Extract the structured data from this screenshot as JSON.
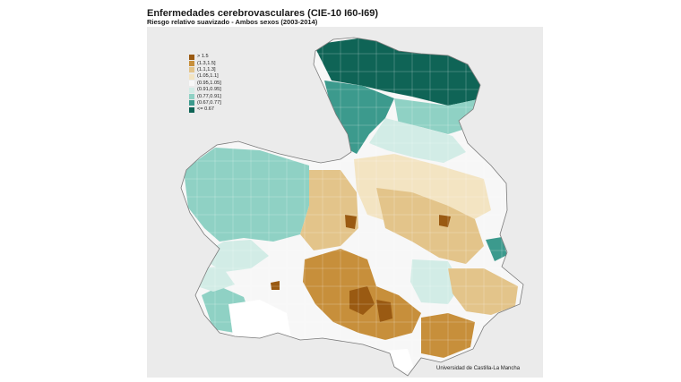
{
  "title": "Enfermedades cerebrovasculares (CIE-10 I60-I69)",
  "subtitle": "Riesgo relativo suavizado - Ambos sexos (2003-2014)",
  "legend": {
    "items": [
      {
        "label": "> 1.5",
        "color": "#9a5a12"
      },
      {
        "label": "(1.3,1.5]",
        "color": "#c78f3b"
      },
      {
        "label": "(1.1,1.3]",
        "color": "#e3c48a"
      },
      {
        "label": "(1.05,1.1]",
        "color": "#f3e4c2"
      },
      {
        "label": "(0.95,1.05]",
        "color": "#f7f7f7"
      },
      {
        "label": "(0.91,0.95]",
        "color": "#d2ece6"
      },
      {
        "label": "(0.77,0.91]",
        "color": "#8fd1c4"
      },
      {
        "label": "(0.67,0.77]",
        "color": "#3c9a8d"
      },
      {
        "label": "<= 0.67",
        "color": "#0f6456"
      }
    ]
  },
  "credit": "Universidad de Castilla-La Mancha",
  "colors": {
    "panel_background": "#ebebeb",
    "border": "#7a7a7a"
  }
}
